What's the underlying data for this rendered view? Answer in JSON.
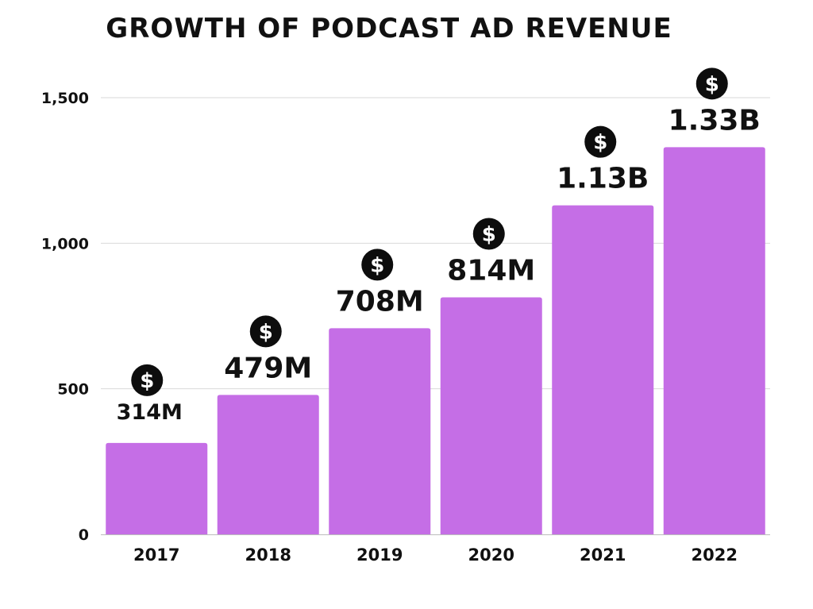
{
  "chart_data": {
    "type": "bar",
    "title": "GROWTH OF PODCAST AD REVENUE",
    "xlabel": "",
    "ylabel": "",
    "categories": [
      "2017",
      "2018",
      "2019",
      "2020",
      "2021",
      "2022"
    ],
    "values": [
      314,
      479,
      708,
      814,
      1130,
      1330
    ],
    "data_labels": [
      "314M",
      "479M",
      "708M",
      "814M",
      "1.13B",
      "1.33B"
    ],
    "ylim": [
      0,
      1500
    ],
    "yticks": [
      0,
      500,
      1000,
      1500
    ],
    "ytick_labels": [
      "0",
      "500",
      "1,000",
      "1,500"
    ],
    "grid": true,
    "legend": "none",
    "bar_color": "#c56ee6",
    "label_icon": "dollar-coin-icon",
    "icon_color": "#0d0d0d"
  }
}
